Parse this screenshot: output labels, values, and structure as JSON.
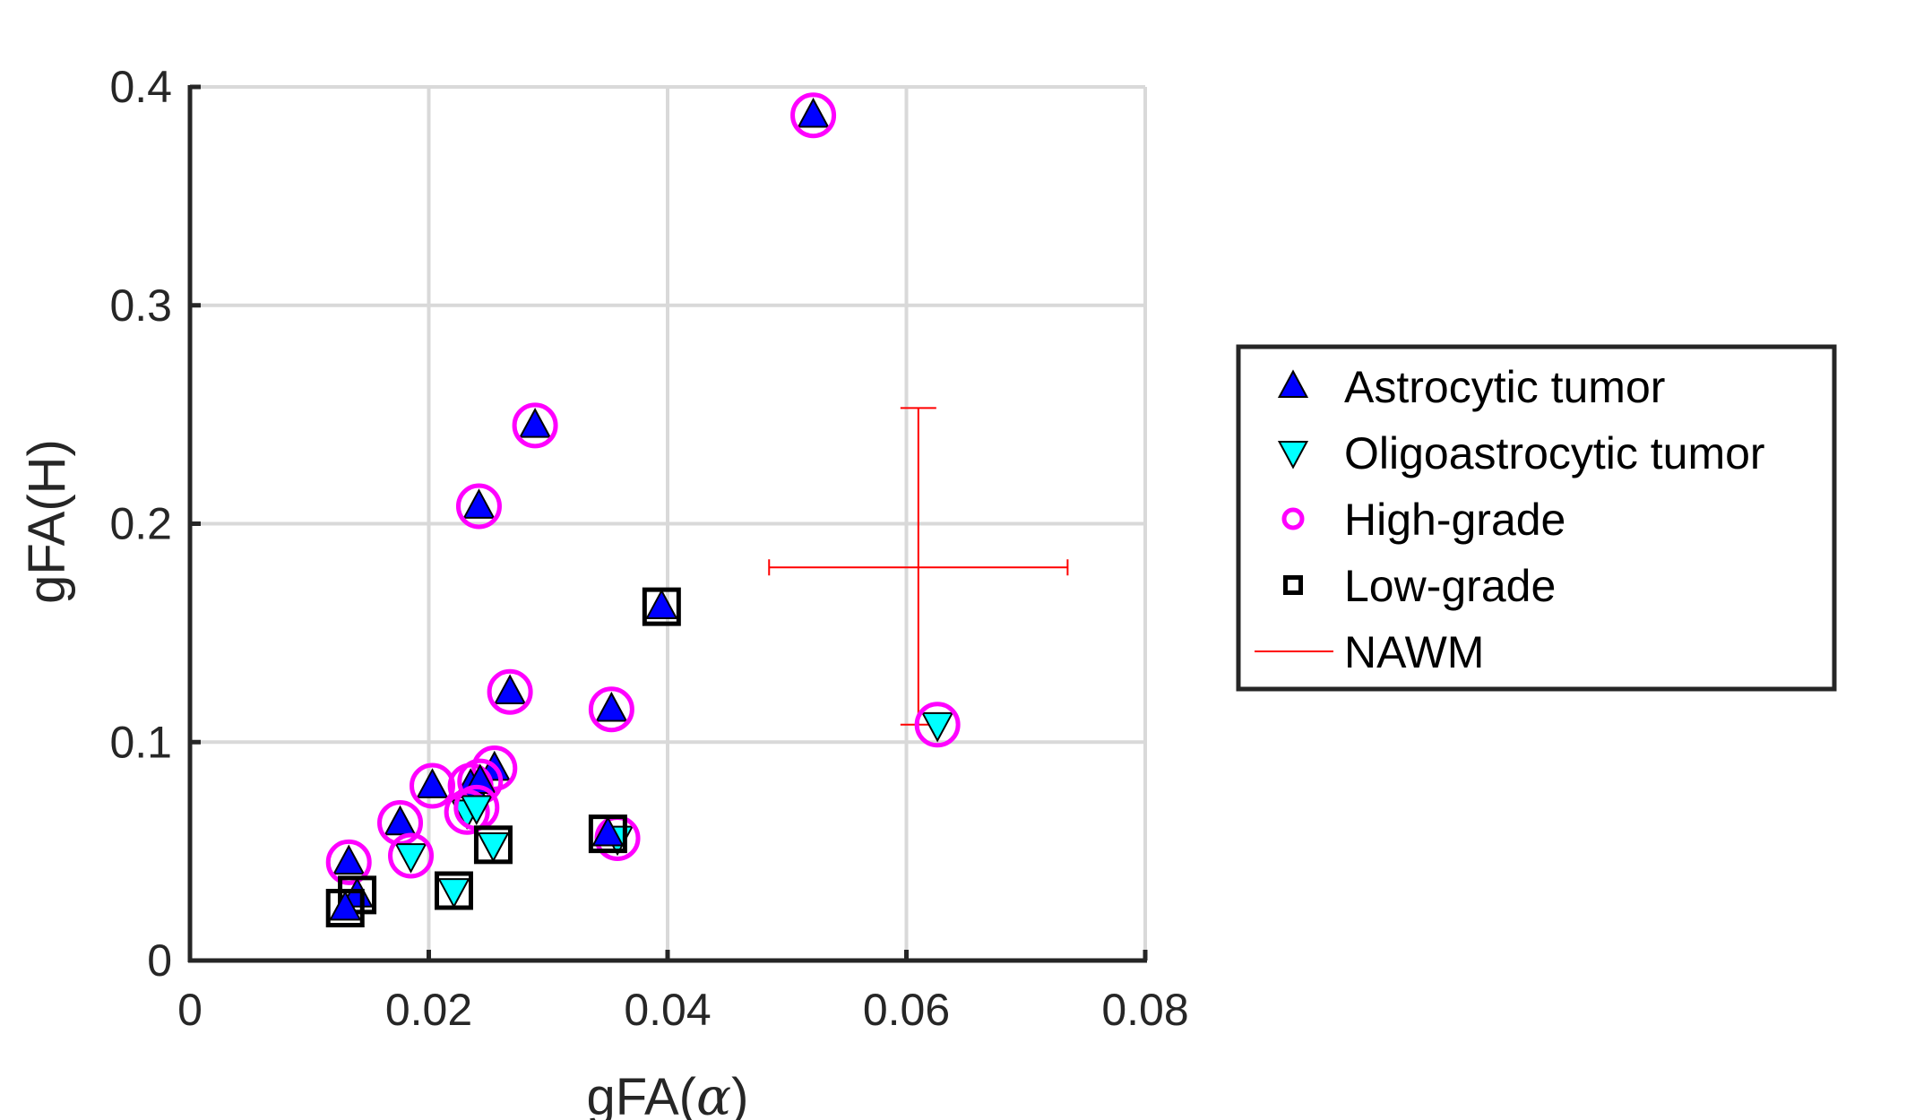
{
  "colors": {
    "astrocytic": "#0000ff",
    "oligoastrocytic": "#00ffff",
    "high_grade": "#ff00ff",
    "low_grade": "#000000",
    "nawm": "#ff0000",
    "grid": "#d9d9d9",
    "axis": "#262626"
  },
  "chart_data": {
    "type": "scatter",
    "title": "",
    "xlabel_prefix": "gFA(",
    "xlabel_symbol": "α",
    "xlabel_suffix": ")",
    "ylabel": "gFA(H)",
    "xlim": [
      0,
      0.08
    ],
    "ylim": [
      0,
      0.4
    ],
    "xticks": [
      0,
      0.02,
      0.04,
      0.06,
      0.08
    ],
    "xtick_labels": [
      "0",
      "0.02",
      "0.04",
      "0.06",
      "0.08"
    ],
    "yticks": [
      0,
      0.1,
      0.2,
      0.3,
      0.4
    ],
    "ytick_labels": [
      "0",
      "0.1",
      "0.2",
      "0.3",
      "0.4"
    ],
    "grid": true,
    "legend_location": "outside-right",
    "legend": [
      {
        "label": "Astrocytic tumor",
        "marker": "triangle-up"
      },
      {
        "label": "Oligoastrocytic tumor",
        "marker": "triangle-down"
      },
      {
        "label": "High-grade",
        "marker": "circle"
      },
      {
        "label": "Low-grade",
        "marker": "square"
      },
      {
        "label": "NAWM",
        "marker": "line"
      }
    ],
    "points": [
      {
        "x": 0.0522,
        "y": 0.387,
        "type": "astrocytic",
        "grade": "high"
      },
      {
        "x": 0.0289,
        "y": 0.245,
        "type": "astrocytic",
        "grade": "high"
      },
      {
        "x": 0.0242,
        "y": 0.208,
        "type": "astrocytic",
        "grade": "high"
      },
      {
        "x": 0.0395,
        "y": 0.162,
        "type": "astrocytic",
        "grade": "low"
      },
      {
        "x": 0.0268,
        "y": 0.123,
        "type": "astrocytic",
        "grade": "high"
      },
      {
        "x": 0.0353,
        "y": 0.115,
        "type": "astrocytic",
        "grade": "high"
      },
      {
        "x": 0.0626,
        "y": 0.108,
        "type": "oligoastrocytic",
        "grade": "high"
      },
      {
        "x": 0.0255,
        "y": 0.088,
        "type": "astrocytic",
        "grade": "high"
      },
      {
        "x": 0.0203,
        "y": 0.08,
        "type": "astrocytic",
        "grade": "high"
      },
      {
        "x": 0.0235,
        "y": 0.08,
        "type": "astrocytic",
        "grade": "high"
      },
      {
        "x": 0.0243,
        "y": 0.082,
        "type": "astrocytic",
        "grade": "high"
      },
      {
        "x": 0.0232,
        "y": 0.068,
        "type": "oligoastrocytic",
        "grade": "high"
      },
      {
        "x": 0.024,
        "y": 0.07,
        "type": "oligoastrocytic",
        "grade": "high"
      },
      {
        "x": 0.0176,
        "y": 0.063,
        "type": "astrocytic",
        "grade": "high"
      },
      {
        "x": 0.0185,
        "y": 0.048,
        "type": "oligoastrocytic",
        "grade": "high"
      },
      {
        "x": 0.0133,
        "y": 0.045,
        "type": "astrocytic",
        "grade": "high"
      },
      {
        "x": 0.0358,
        "y": 0.056,
        "type": "oligoastrocytic",
        "grade": "high"
      },
      {
        "x": 0.035,
        "y": 0.058,
        "type": "astrocytic",
        "grade": "low"
      },
      {
        "x": 0.0254,
        "y": 0.053,
        "type": "oligoastrocytic",
        "grade": "low"
      },
      {
        "x": 0.0221,
        "y": 0.032,
        "type": "oligoastrocytic",
        "grade": "low"
      },
      {
        "x": 0.014,
        "y": 0.03,
        "type": "astrocytic",
        "grade": "low"
      },
      {
        "x": 0.013,
        "y": 0.024,
        "type": "astrocytic",
        "grade": "low"
      }
    ],
    "nawm": {
      "x": 0.061,
      "y": 0.18,
      "x_err_low": 0.0485,
      "x_err_high": 0.0735,
      "y_err_low": 0.108,
      "y_err_high": 0.253
    }
  }
}
